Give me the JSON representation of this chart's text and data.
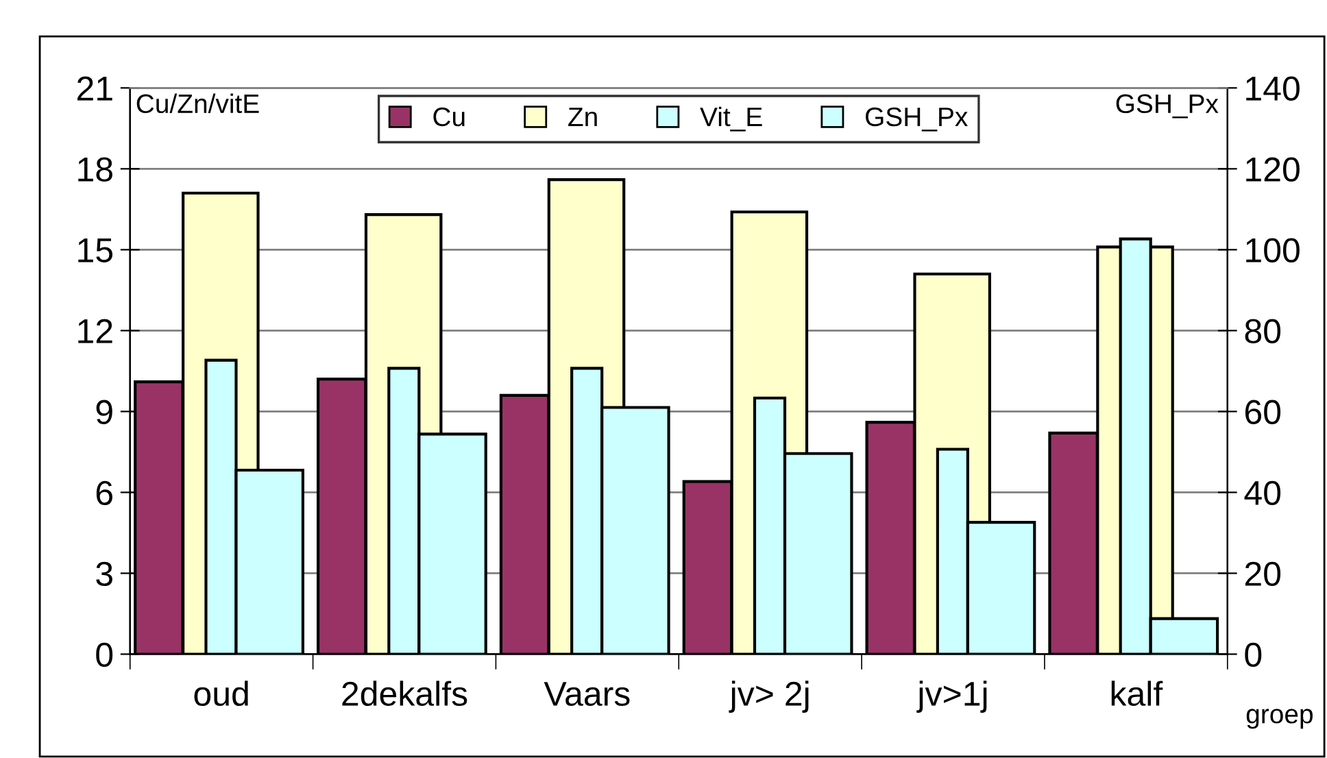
{
  "chart_data": {
    "type": "bar",
    "ylabel": "Cu/Zn/vitE",
    "y2label": "GSH_Px",
    "xlabel": "groep",
    "categories": [
      "oud",
      "2dekalfs",
      "Vaars",
      "jv> 2j",
      "jv>1j",
      "kalf"
    ],
    "series": [
      {
        "name": "Cu",
        "color": "#993366",
        "values": [
          10.1,
          10.2,
          9.6,
          6.4,
          8.6,
          8.2
        ]
      },
      {
        "name": "Zn",
        "color": "#ffffcc",
        "values": [
          17.1,
          16.3,
          17.6,
          16.4,
          14.1,
          15.1
        ]
      },
      {
        "name": "Vit_E",
        "color": "#ccffff",
        "values": [
          10.9,
          10.6,
          10.6,
          9.5,
          7.6,
          15.4
        ]
      },
      {
        "name": "GSH_Px",
        "color": "#ccffff",
        "axis": "y2",
        "values": [
          45.5,
          54.4,
          61,
          49.6,
          32.6,
          8.8
        ]
      }
    ],
    "ylim": [
      0,
      21
    ],
    "yticks": [
      0,
      3,
      6,
      9,
      12,
      15,
      18,
      21
    ],
    "y2lim": [
      0,
      140
    ],
    "y2ticks": [
      0,
      20,
      40,
      60,
      80,
      100,
      120,
      140
    ],
    "grid": "y",
    "legend": "top"
  }
}
